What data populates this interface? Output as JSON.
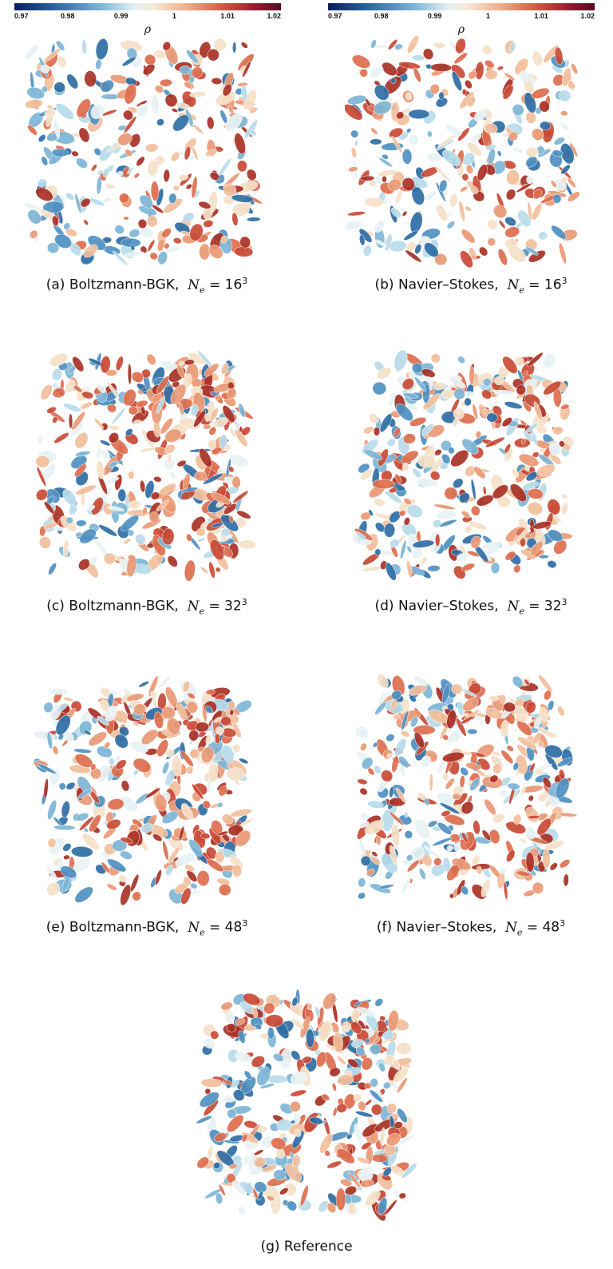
{
  "colorbar": {
    "variable": "ρ",
    "ticks": [
      "0.97",
      "0.98",
      "0.99",
      "1",
      "1.01",
      "1.02"
    ],
    "range": [
      0.97,
      1.02
    ],
    "colors": {
      "low": "#0b1e5c",
      "mid": "#f7ead8",
      "high": "#5a0a24"
    }
  },
  "panels": [
    {
      "label": "(a)",
      "method": "Boltzmann-BGK",
      "resolution": "16"
    },
    {
      "label": "(b)",
      "method": "Navier–Stokes",
      "resolution": "16"
    },
    {
      "label": "(c)",
      "method": "Boltzmann-BGK",
      "resolution": "32"
    },
    {
      "label": "(d)",
      "method": "Navier–Stokes",
      "resolution": "32"
    },
    {
      "label": "(e)",
      "method": "Boltzmann-BGK",
      "resolution": "48"
    },
    {
      "label": "(f)",
      "method": "Navier–Stokes",
      "resolution": "48"
    },
    {
      "label": "(g)",
      "method": "Reference",
      "resolution": ""
    }
  ],
  "caption_symbols": {
    "N": "N",
    "e": "e",
    "eq": "=",
    "exp": "3",
    "sep": ","
  }
}
